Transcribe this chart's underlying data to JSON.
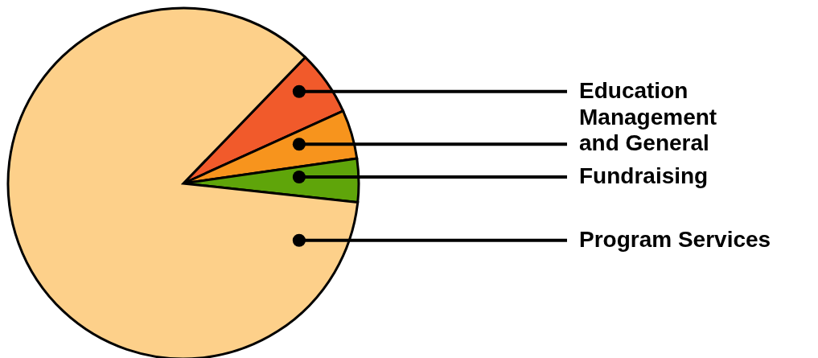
{
  "chart_data": {
    "type": "pie",
    "categories": [
      "Education",
      "Management and General",
      "Fundraising",
      "Program Services"
    ],
    "values": [
      6,
      4.5,
      4,
      85.5
    ],
    "colors": [
      "#f15a2b",
      "#f7941d",
      "#5fa50a",
      "#fdd08a"
    ]
  }
}
